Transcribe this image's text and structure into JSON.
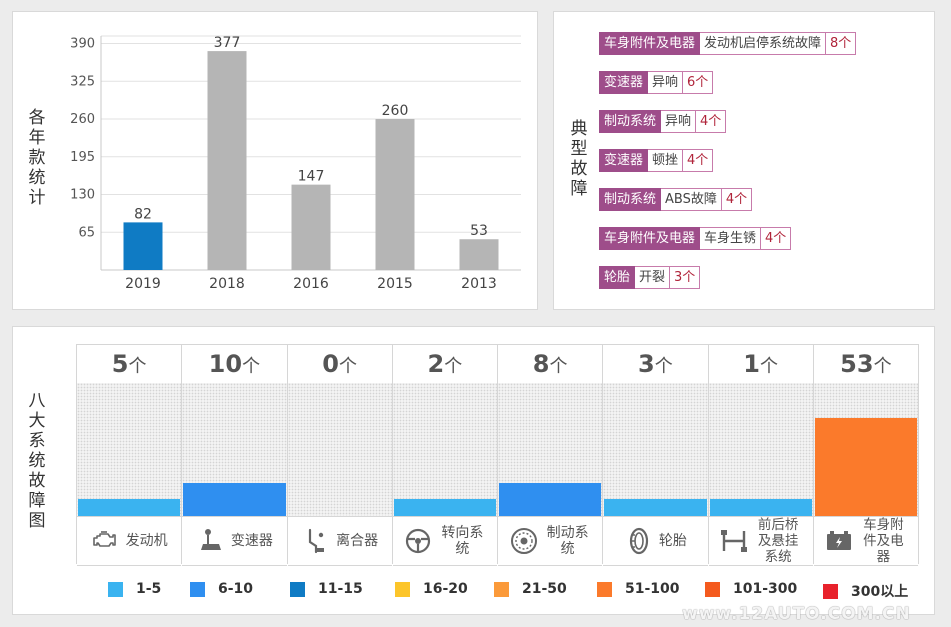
{
  "year_stats": {
    "title": "各年款统计",
    "chart_data": {
      "type": "bar",
      "categories": [
        "2019",
        "2018",
        "2016",
        "2015",
        "2013"
      ],
      "values": [
        82,
        377,
        147,
        260,
        53
      ],
      "highlight_index": 0,
      "highlight_color": "#0f7bc4",
      "bar_color": "#b5b5b5",
      "yticks": [
        65,
        130,
        195,
        260,
        325,
        390
      ],
      "ylim": [
        0,
        403
      ],
      "grid": true
    }
  },
  "typical_faults": {
    "title": "典型故障",
    "items": [
      {
        "category": "车身附件及电器",
        "fault": "发动机启停系统故障",
        "count": "8个"
      },
      {
        "category": "变速器",
        "fault": "异响",
        "count": "6个"
      },
      {
        "category": "制动系统",
        "fault": "异响",
        "count": "4个"
      },
      {
        "category": "变速器",
        "fault": "顿挫",
        "count": "4个"
      },
      {
        "category": "制动系统",
        "fault": "ABS故障",
        "count": "4个"
      },
      {
        "category": "车身附件及电器",
        "fault": "车身生锈",
        "count": "4个"
      },
      {
        "category": "轮胎",
        "fault": "开裂",
        "count": "3个"
      }
    ]
  },
  "eight_systems": {
    "title": "八大系统故障图",
    "unit": "个",
    "systems": [
      {
        "name": "发动机",
        "count": 5,
        "icon": "engine-icon",
        "color": "#3ab3f0"
      },
      {
        "name": "变速器",
        "count": 10,
        "icon": "gear-shift-icon",
        "color": "#2f8ff0"
      },
      {
        "name": "离合器",
        "count": 0,
        "icon": "clutch-icon",
        "color": "#3ab3f0"
      },
      {
        "name": "转向系统",
        "count": 2,
        "icon": "steering-wheel-icon",
        "color": "#3ab3f0"
      },
      {
        "name": "制动系统",
        "count": 8,
        "icon": "brake-disc-icon",
        "color": "#2f8ff0"
      },
      {
        "name": "轮胎",
        "count": 3,
        "icon": "tire-icon",
        "color": "#3ab3f0"
      },
      {
        "name": "前后桥及悬挂系统",
        "count": 1,
        "icon": "suspension-icon",
        "color": "#3ab3f0"
      },
      {
        "name": "车身附件及电器",
        "count": 53,
        "icon": "battery-icon",
        "color": "#fb7a2b"
      }
    ],
    "legend": [
      {
        "label": "1-5",
        "color": "#3ab3f0"
      },
      {
        "label": "6-10",
        "color": "#2f8ff0"
      },
      {
        "label": "11-15",
        "color": "#0f7bc4"
      },
      {
        "label": "16-20",
        "color": "#fcc52a"
      },
      {
        "label": "21-50",
        "color": "#fb9a3a"
      },
      {
        "label": "51-100",
        "color": "#fb7a2b"
      },
      {
        "label": "101-300",
        "color": "#f45a1e"
      },
      {
        "label": "300以上",
        "color": "#e8222c"
      }
    ]
  },
  "watermark": "www.12AUTO.COM.CN"
}
